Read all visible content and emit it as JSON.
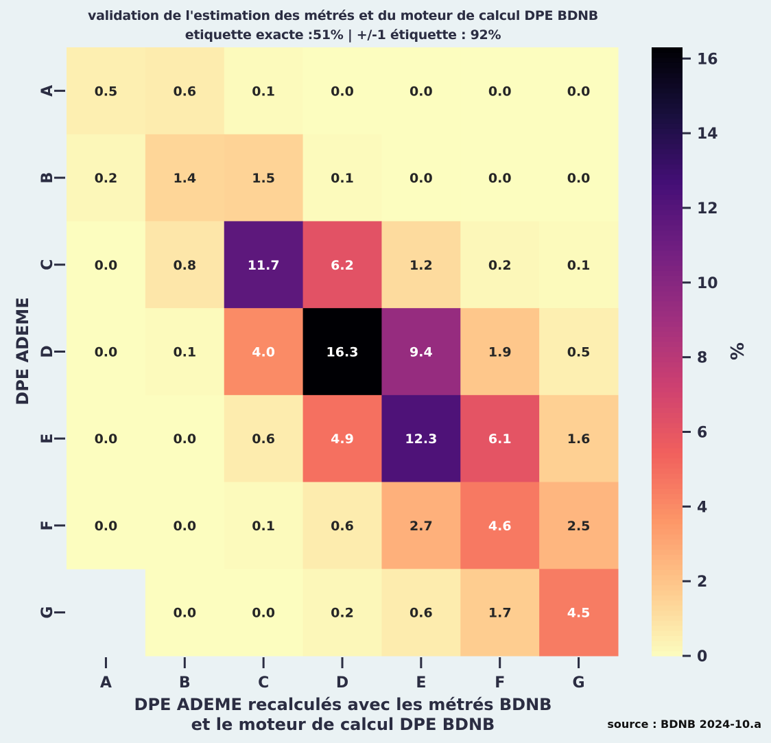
{
  "chart_data": {
    "type": "heatmap",
    "title": "validation de l'estimation des métrés et du moteur de calcul DPE BDNB",
    "subtitle": "etiquette exacte :51% | +/-1 étiquette : 92%",
    "xlabel_line1": "DPE ADEME recalculés avec les métrés BDNB",
    "xlabel_line2": "et le moteur de calcul DPE BDNB",
    "ylabel": "DPE ADEME",
    "x_categories": [
      "A",
      "B",
      "C",
      "D",
      "E",
      "F",
      "G"
    ],
    "y_categories": [
      "A",
      "B",
      "C",
      "D",
      "E",
      "F",
      "G"
    ],
    "values": [
      [
        0.5,
        0.6,
        0.1,
        0.0,
        0.0,
        0.0,
        0.0
      ],
      [
        0.2,
        1.4,
        1.5,
        0.1,
        0.0,
        0.0,
        0.0
      ],
      [
        0.0,
        0.8,
        11.7,
        6.2,
        1.2,
        0.2,
        0.1
      ],
      [
        0.0,
        0.1,
        4.0,
        16.3,
        9.4,
        1.9,
        0.5
      ],
      [
        0.0,
        0.0,
        0.6,
        4.9,
        12.3,
        6.1,
        1.6
      ],
      [
        0.0,
        0.0,
        0.1,
        0.6,
        2.7,
        4.6,
        2.5
      ],
      [
        null,
        0.0,
        0.0,
        0.2,
        0.6,
        1.7,
        4.5
      ]
    ],
    "colorbar": {
      "label": "%",
      "range": [
        0,
        16.3
      ],
      "ticks": [
        "0",
        "2",
        "4",
        "6",
        "8",
        "10",
        "12",
        "14",
        "16"
      ],
      "colormap": "magma_r"
    }
  },
  "source": "source : BDNB 2024-10.a"
}
